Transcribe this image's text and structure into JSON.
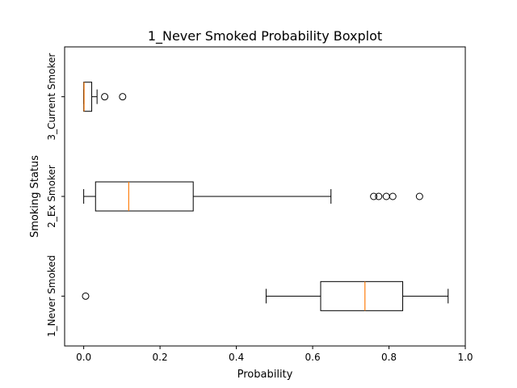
{
  "chart_data": {
    "type": "boxplot",
    "orientation": "horizontal",
    "title": "1_Never Smoked Probability Boxplot",
    "xlabel": "Probability",
    "ylabel": "Smoking Status",
    "xlim": [
      -0.05,
      1.0
    ],
    "x_ticks": [
      0.0,
      0.2,
      0.4,
      0.6,
      0.8,
      1.0
    ],
    "x_tick_labels": [
      "0.0",
      "0.2",
      "0.4",
      "0.6",
      "0.8",
      "1.0"
    ],
    "categories": [
      "1_Never Smoked",
      "2_Ex Smoker",
      "3_Current Smoker"
    ],
    "boxes": [
      {
        "category": "1_Never Smoked",
        "whisker_low": 0.478,
        "q1": 0.621,
        "median": 0.737,
        "q3": 0.836,
        "whisker_high": 0.955,
        "outliers": [
          0.005
        ]
      },
      {
        "category": "2_Ex Smoker",
        "whisker_low": 0.0,
        "q1": 0.031,
        "median": 0.118,
        "q3": 0.287,
        "whisker_high": 0.648,
        "outliers": [
          0.76,
          0.773,
          0.793,
          0.81,
          0.88
        ]
      },
      {
        "category": "3_Current Smoker",
        "whisker_low": 0.0,
        "q1": 0.0,
        "median": 0.001,
        "q3": 0.021,
        "whisker_high": 0.035,
        "outliers": [
          0.055,
          0.102
        ]
      }
    ],
    "grid": false,
    "colors": {
      "box": "#000000",
      "median": "#ff7f0e",
      "outlier": "#000000"
    }
  }
}
